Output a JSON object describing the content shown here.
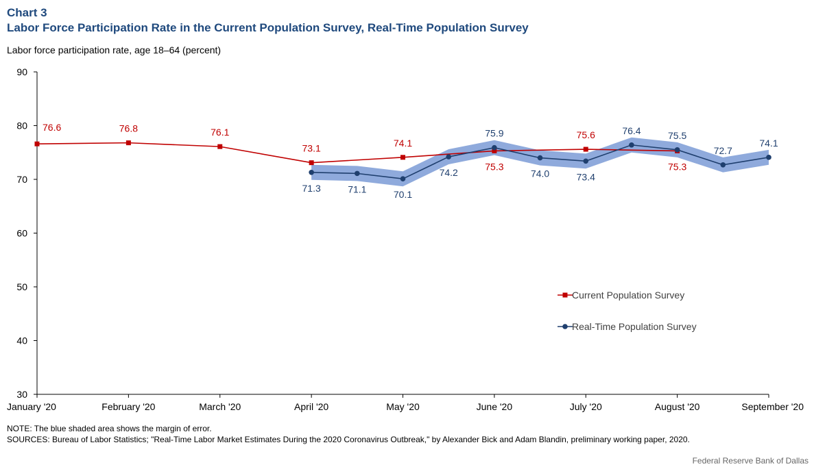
{
  "header": {
    "chart_number": "Chart 3",
    "title": "Labor Force Participation Rate in the Current Population Survey, Real-Time Population Survey"
  },
  "footer": {
    "note": "NOTE: The blue shaded area shows the margin of error.",
    "sources": "SOURCES: Bureau of Labor Statistics; \"Real-Time Labor Market Estimates During the 2020 Coronavirus Outbreak,\" by Alexander Bick and Adam Blandin, preliminary working paper, 2020.",
    "credit": "Federal Reserve Bank of Dallas"
  },
  "chart_data": {
    "type": "line",
    "ylabel": "Labor force participation rate, age 18–64 (percent)",
    "xlabel": "",
    "ylim": [
      30,
      90
    ],
    "yticks": [
      30,
      40,
      50,
      60,
      70,
      80,
      90
    ],
    "xlim": [
      0,
      8
    ],
    "x_tick_labels": [
      {
        "x": 0,
        "label": "January '20"
      },
      {
        "x": 1,
        "label": "February '20"
      },
      {
        "x": 2,
        "label": "March '20"
      },
      {
        "x": 3,
        "label": "April '20"
      },
      {
        "x": 4,
        "label": "May '20"
      },
      {
        "x": 5,
        "label": "June '20"
      },
      {
        "x": 6,
        "label": "July '20"
      },
      {
        "x": 7,
        "label": "August '20"
      },
      {
        "x": 8,
        "label": "September '20"
      }
    ],
    "grid": false,
    "legend_position": "right-center",
    "series": [
      {
        "name": "Current Population Survey",
        "color": "#c00000",
        "marker": "square",
        "points": [
          {
            "x": 0,
            "y": 76.6,
            "label": "76.6",
            "label_pos": "above-right"
          },
          {
            "x": 1,
            "y": 76.8,
            "label": "76.8",
            "label_pos": "above"
          },
          {
            "x": 2,
            "y": 76.1,
            "label": "76.1",
            "label_pos": "above"
          },
          {
            "x": 3,
            "y": 73.1,
            "label": "73.1",
            "label_pos": "above"
          },
          {
            "x": 4,
            "y": 74.1,
            "label": "74.1",
            "label_pos": "above"
          },
          {
            "x": 5,
            "y": 75.3,
            "label": "75.3",
            "label_pos": "below"
          },
          {
            "x": 6,
            "y": 75.6,
            "label": "75.6",
            "label_pos": "above"
          },
          {
            "x": 7,
            "y": 75.3,
            "label": "75.3",
            "label_pos": "below"
          }
        ]
      },
      {
        "name": "Real-Time Population Survey",
        "color": "#1f3f6e",
        "marker": "circle",
        "band_color": "#8faadc",
        "band_halfwidth": 1.4,
        "points": [
          {
            "x": 3,
            "y": 71.3,
            "label": "71.3",
            "label_pos": "below"
          },
          {
            "x": 3.5,
            "y": 71.1,
            "label": "71.1",
            "label_pos": "below"
          },
          {
            "x": 4,
            "y": 70.1,
            "label": "70.1",
            "label_pos": "below"
          },
          {
            "x": 4.5,
            "y": 74.2,
            "label": "74.2",
            "label_pos": "below"
          },
          {
            "x": 5,
            "y": 75.9,
            "label": "75.9",
            "label_pos": "above"
          },
          {
            "x": 5.5,
            "y": 74.0,
            "label": "74.0",
            "label_pos": "below"
          },
          {
            "x": 6,
            "y": 73.4,
            "label": "73.4",
            "label_pos": "below"
          },
          {
            "x": 6.5,
            "y": 76.4,
            "label": "76.4",
            "label_pos": "above"
          },
          {
            "x": 7,
            "y": 75.5,
            "label": "75.5",
            "label_pos": "above"
          },
          {
            "x": 7.5,
            "y": 72.7,
            "label": "72.7",
            "label_pos": "above"
          },
          {
            "x": 8,
            "y": 74.1,
            "label": "74.1",
            "label_pos": "above"
          }
        ]
      }
    ]
  }
}
